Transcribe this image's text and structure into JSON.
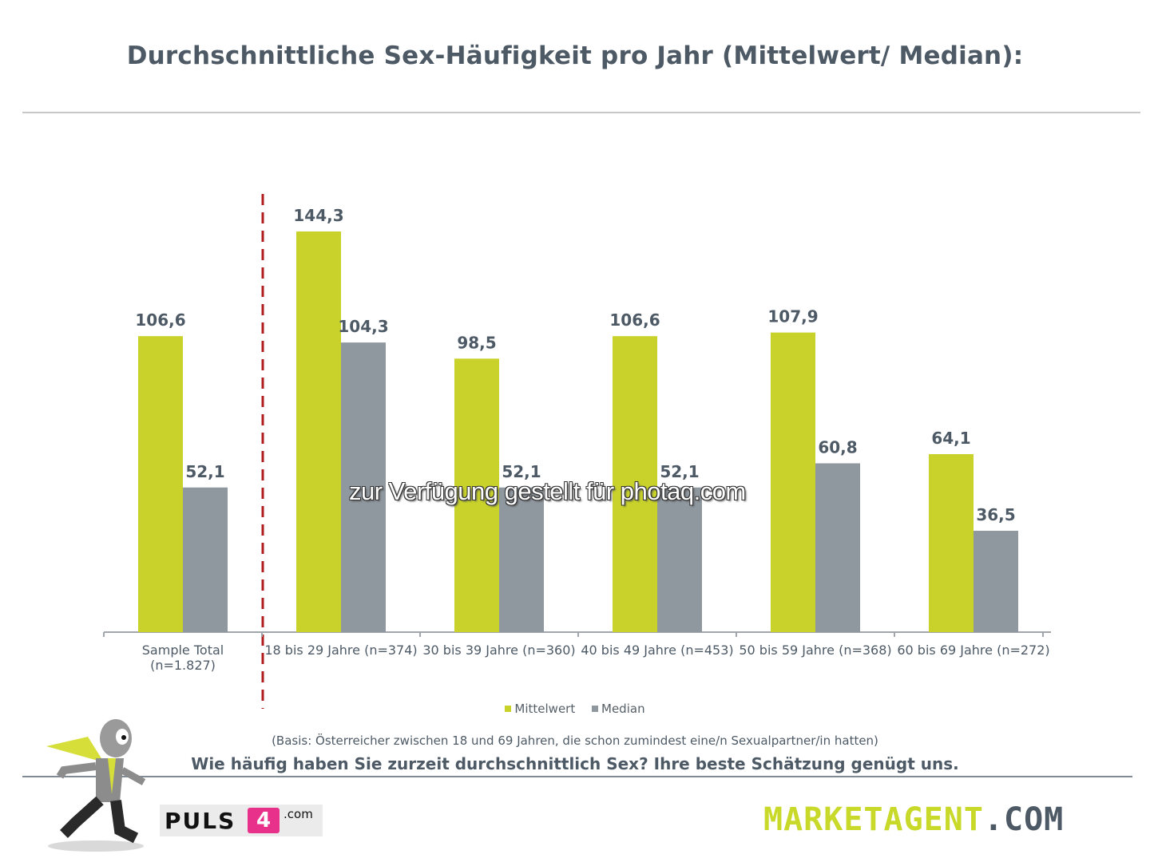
{
  "header": {
    "title": "Durchschnittliche Sex-Häufigkeit pro Jahr (Mittelwert/ Median):"
  },
  "colors": {
    "mittelwert": "#c8d22a",
    "median": "#8f979f",
    "text": "#4d5a66",
    "divider_dashed": "#b01c1c"
  },
  "chart_data": {
    "type": "bar",
    "title": "Durchschnittliche Sex-Häufigkeit pro Jahr (Mittelwert/ Median):",
    "xlabel": "",
    "ylabel": "",
    "ylim": [
      0,
      150
    ],
    "grid": false,
    "legend_position": "bottom",
    "categories": [
      "Sample Total\n(n=1.827)",
      "18 bis 29 Jahre (n=374)",
      "30 bis 39 Jahre (n=360)",
      "40 bis 49 Jahre (n=453)",
      "50 bis 59 Jahre (n=368)",
      "60 bis 69 Jahre (n=272)"
    ],
    "series": [
      {
        "name": "Mittelwert",
        "values": [
          106.6,
          144.3,
          98.5,
          106.6,
          107.9,
          64.1
        ],
        "labels": [
          "106,6",
          "144,3",
          "98,5",
          "106,6",
          "107,9",
          "64,1"
        ]
      },
      {
        "name": "Median",
        "values": [
          52.1,
          104.3,
          52.1,
          52.1,
          60.8,
          36.5
        ],
        "labels": [
          "52,1",
          "104,3",
          "52,1",
          "52,1",
          "60,8",
          "36,5"
        ]
      }
    ],
    "annotations": [
      "dashed separator between Sample Total and age groups"
    ]
  },
  "legend": {
    "items": [
      {
        "label": "Mittelwert"
      },
      {
        "label": "Median"
      }
    ]
  },
  "watermark": "zur Verfügung gestellt für photaq.com",
  "footer": {
    "basis": "(Basis: Österreicher zwischen 18 und 69 Jahren, die schon zumindest eine/n Sexualpartner/in hatten)",
    "question": "Wie häufig haben Sie zurzeit durchschnittlich Sex? Ihre beste Schätzung genügt uns.",
    "logo_left_word": "PULS",
    "logo_left_number": "4",
    "logo_left_suffix": ".com",
    "logo_right_main": "MARKETAGENT",
    "logo_right_suffix": ".COM",
    "mascot_icon": "running-agent-mascot"
  }
}
